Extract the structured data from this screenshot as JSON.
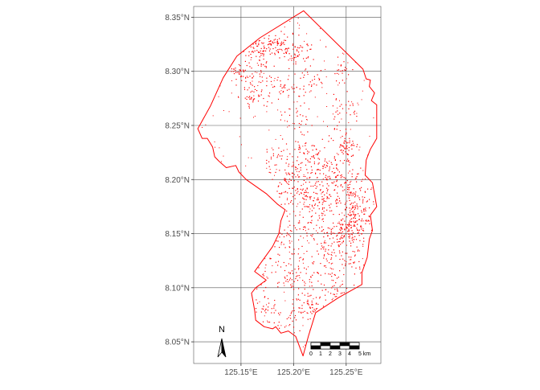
{
  "map": {
    "lon_range": [
      125.105,
      125.283
    ],
    "lat_range": [
      8.03,
      8.36
    ],
    "boundary_color": "#ff0000",
    "point_color": "#ff0000",
    "grid_color": "#555555",
    "lon_ticks": [
      {
        "value": 125.15,
        "label": "125.15°E"
      },
      {
        "value": 125.2,
        "label": "125.20°E"
      },
      {
        "value": 125.25,
        "label": "125.25°E"
      }
    ],
    "lat_ticks": [
      {
        "value": 8.35,
        "label": "8.35°N"
      },
      {
        "value": 8.3,
        "label": "8.30°N"
      },
      {
        "value": 8.25,
        "label": "8.25°N"
      },
      {
        "value": 8.2,
        "label": "8.20°N"
      },
      {
        "value": 8.15,
        "label": "8.15°N"
      },
      {
        "value": 8.1,
        "label": "8.10°N"
      },
      {
        "value": 8.05,
        "label": "8.05°N"
      }
    ],
    "boundary": [
      [
        125.2095,
        8.356
      ],
      [
        125.266,
        8.302
      ],
      [
        125.269,
        8.293
      ],
      [
        125.273,
        8.292
      ],
      [
        125.272,
        8.286
      ],
      [
        125.277,
        8.28
      ],
      [
        125.274,
        8.273
      ],
      [
        125.279,
        8.269
      ],
      [
        125.279,
        8.238
      ],
      [
        125.273,
        8.228
      ],
      [
        125.269,
        8.218
      ],
      [
        125.268,
        8.204
      ],
      [
        125.275,
        8.197
      ],
      [
        125.279,
        8.175
      ],
      [
        125.273,
        8.167
      ],
      [
        125.275,
        8.153
      ],
      [
        125.272,
        8.145
      ],
      [
        125.27,
        8.128
      ],
      [
        125.265,
        8.114
      ],
      [
        125.265,
        8.103
      ],
      [
        125.243,
        8.091
      ],
      [
        125.221,
        8.077
      ],
      [
        125.214,
        8.055
      ],
      [
        125.209,
        8.037
      ],
      [
        125.202,
        8.055
      ],
      [
        125.195,
        8.06
      ],
      [
        125.188,
        8.058
      ],
      [
        125.183,
        8.064
      ],
      [
        125.18,
        8.062
      ],
      [
        125.172,
        8.064
      ],
      [
        125.164,
        8.07
      ],
      [
        125.163,
        8.079
      ],
      [
        125.16,
        8.095
      ],
      [
        125.164,
        8.1
      ],
      [
        125.174,
        8.107
      ],
      [
        125.163,
        8.115
      ],
      [
        125.18,
        8.138
      ],
      [
        125.186,
        8.15
      ],
      [
        125.188,
        8.162
      ],
      [
        125.192,
        8.172
      ],
      [
        125.185,
        8.177
      ],
      [
        125.174,
        8.187
      ],
      [
        125.155,
        8.2
      ],
      [
        125.148,
        8.207
      ],
      [
        125.145,
        8.213
      ],
      [
        125.136,
        8.211
      ],
      [
        125.129,
        8.217
      ],
      [
        125.125,
        8.221
      ],
      [
        125.123,
        8.23
      ],
      [
        125.118,
        8.238
      ],
      [
        125.113,
        8.238
      ],
      [
        125.109,
        8.247
      ],
      [
        125.121,
        8.268
      ],
      [
        125.133,
        8.294
      ],
      [
        125.146,
        8.314
      ],
      [
        125.168,
        8.331
      ],
      [
        125.2095,
        8.356
      ]
    ],
    "point_clusters": [
      {
        "lon": 125.165,
        "lat": 8.322,
        "spread_lon": 0.007,
        "spread_lat": 0.006,
        "count": 55
      },
      {
        "lon": 125.185,
        "lat": 8.325,
        "spread_lon": 0.007,
        "spread_lat": 0.006,
        "count": 60
      },
      {
        "lon": 125.205,
        "lat": 8.318,
        "spread_lon": 0.008,
        "spread_lat": 0.006,
        "count": 55
      },
      {
        "lon": 125.15,
        "lat": 8.3,
        "spread_lon": 0.006,
        "spread_lat": 0.006,
        "count": 35
      },
      {
        "lon": 125.17,
        "lat": 8.295,
        "spread_lon": 0.008,
        "spread_lat": 0.008,
        "count": 35
      },
      {
        "lon": 125.162,
        "lat": 8.278,
        "spread_lon": 0.006,
        "spread_lat": 0.006,
        "count": 40
      },
      {
        "lon": 125.19,
        "lat": 8.285,
        "spread_lon": 0.008,
        "spread_lat": 0.008,
        "count": 30
      },
      {
        "lon": 125.215,
        "lat": 8.29,
        "spread_lon": 0.009,
        "spread_lat": 0.008,
        "count": 30
      },
      {
        "lon": 125.245,
        "lat": 8.3,
        "spread_lon": 0.006,
        "spread_lat": 0.005,
        "count": 20
      },
      {
        "lon": 125.25,
        "lat": 8.27,
        "spread_lon": 0.008,
        "spread_lat": 0.01,
        "count": 30
      },
      {
        "lon": 125.205,
        "lat": 8.255,
        "spread_lon": 0.01,
        "spread_lat": 0.01,
        "count": 30
      },
      {
        "lon": 125.25,
        "lat": 8.232,
        "spread_lon": 0.006,
        "spread_lat": 0.008,
        "count": 60
      },
      {
        "lon": 125.215,
        "lat": 8.218,
        "spread_lon": 0.014,
        "spread_lat": 0.01,
        "count": 110
      },
      {
        "lon": 125.185,
        "lat": 8.215,
        "spread_lon": 0.008,
        "spread_lat": 0.008,
        "count": 35
      },
      {
        "lon": 125.235,
        "lat": 8.205,
        "spread_lon": 0.008,
        "spread_lat": 0.008,
        "count": 50
      },
      {
        "lon": 125.205,
        "lat": 8.192,
        "spread_lon": 0.01,
        "spread_lat": 0.008,
        "count": 80
      },
      {
        "lon": 125.255,
        "lat": 8.19,
        "spread_lon": 0.01,
        "spread_lat": 0.01,
        "count": 100
      },
      {
        "lon": 125.228,
        "lat": 8.178,
        "spread_lon": 0.01,
        "spread_lat": 0.008,
        "count": 80
      },
      {
        "lon": 125.26,
        "lat": 8.165,
        "spread_lon": 0.008,
        "spread_lat": 0.008,
        "count": 90
      },
      {
        "lon": 125.25,
        "lat": 8.15,
        "spread_lon": 0.008,
        "spread_lat": 0.008,
        "count": 110
      },
      {
        "lon": 125.215,
        "lat": 8.16,
        "spread_lon": 0.012,
        "spread_lat": 0.01,
        "count": 50
      },
      {
        "lon": 125.195,
        "lat": 8.15,
        "spread_lon": 0.008,
        "spread_lat": 0.008,
        "count": 25
      },
      {
        "lon": 125.23,
        "lat": 8.135,
        "spread_lon": 0.012,
        "spread_lat": 0.008,
        "count": 45
      },
      {
        "lon": 125.255,
        "lat": 8.125,
        "spread_lon": 0.008,
        "spread_lat": 0.008,
        "count": 30
      },
      {
        "lon": 125.19,
        "lat": 8.125,
        "spread_lon": 0.01,
        "spread_lat": 0.008,
        "count": 25
      },
      {
        "lon": 125.2,
        "lat": 8.108,
        "spread_lon": 0.01,
        "spread_lat": 0.006,
        "count": 45
      },
      {
        "lon": 125.23,
        "lat": 8.11,
        "spread_lon": 0.01,
        "spread_lat": 0.008,
        "count": 35
      },
      {
        "lon": 125.215,
        "lat": 8.085,
        "spread_lon": 0.01,
        "spread_lat": 0.006,
        "count": 60
      },
      {
        "lon": 125.18,
        "lat": 8.078,
        "spread_lon": 0.008,
        "spread_lat": 0.006,
        "count": 30
      },
      {
        "lon": 125.2,
        "lat": 8.065,
        "spread_lon": 0.006,
        "spread_lat": 0.006,
        "count": 15
      },
      {
        "lon": 125.24,
        "lat": 8.095,
        "spread_lon": 0.01,
        "spread_lat": 0.006,
        "count": 20
      },
      {
        "lon": 125.17,
        "lat": 8.1,
        "spread_lon": 0.006,
        "spread_lat": 0.01,
        "count": 15
      }
    ],
    "north_arrow": {
      "label": "N"
    },
    "scale_bar": {
      "segments": 5,
      "labels": [
        "0",
        "1",
        "2",
        "3",
        "4",
        "5 km"
      ]
    }
  }
}
